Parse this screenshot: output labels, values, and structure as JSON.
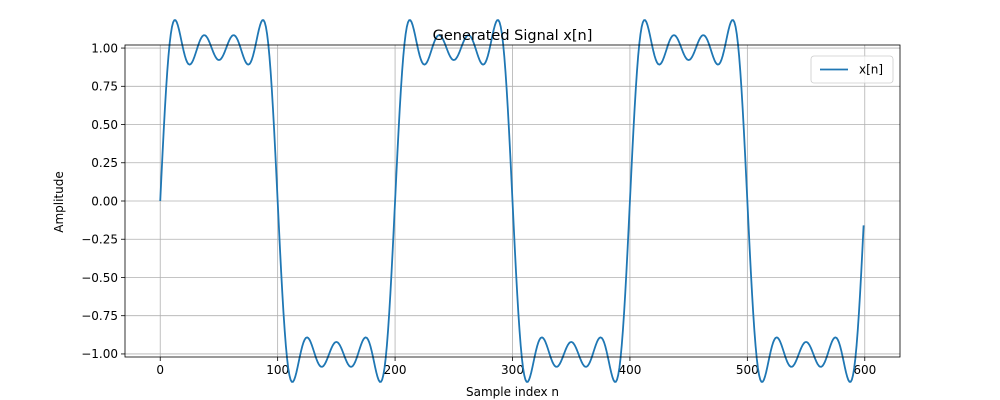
{
  "chart_data": {
    "type": "line",
    "title": "Generated Signal x[n]",
    "xlabel": "Sample index n",
    "ylabel": "Amplitude",
    "xlim": [
      -30,
      630
    ],
    "ylim": [
      -1.02,
      1.02
    ],
    "xticks": [
      0,
      100,
      200,
      300,
      400,
      500,
      600
    ],
    "yticks": [
      1.0,
      0.75,
      0.5,
      0.25,
      0.0,
      -0.25,
      -0.5,
      -0.75,
      -1.0
    ],
    "xtick_labels": [
      "0",
      "100",
      "200",
      "300",
      "400",
      "500",
      "600"
    ],
    "ytick_labels": [
      "1.00",
      "0.75",
      "0.50",
      "0.25",
      "0.00",
      "−0.25",
      "−0.50",
      "−0.75",
      "−1.00"
    ],
    "grid": true,
    "legend_position": "top-right",
    "series": [
      {
        "name": "x[n]",
        "color": "#1f77b4",
        "x_range": [
          0,
          599
        ],
        "generator": "sum of odd harmonics k=1,3,5,7 of sin(2*pi*k*n/200)/k scaled by 4/pi (square wave, period 200)",
        "harmonics": [
          1,
          3,
          5,
          7
        ],
        "period": 200,
        "scale": 1.2732
      }
    ]
  }
}
